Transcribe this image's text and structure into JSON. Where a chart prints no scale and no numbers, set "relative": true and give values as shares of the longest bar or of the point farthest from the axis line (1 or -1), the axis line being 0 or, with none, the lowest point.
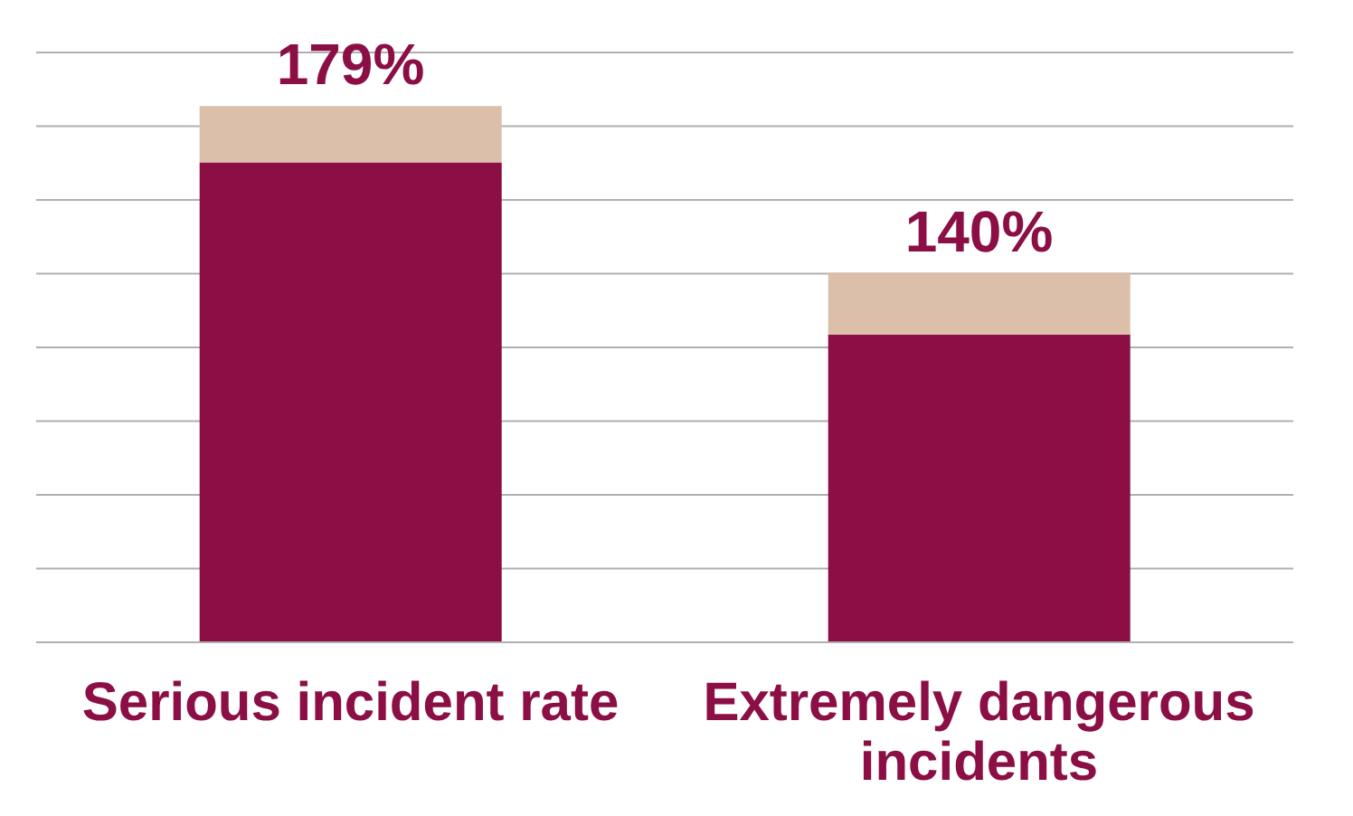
{
  "chart_data": {
    "type": "bar",
    "relative": true,
    "stacked": true,
    "grid": "y",
    "categories": [
      "Serious incident rate",
      "Extremely dangerous incidents"
    ],
    "series": [
      {
        "color": "#8b0e45",
        "values": [
          0.895,
          0.574
        ]
      },
      {
        "color": "#dbbfaa",
        "values": [
          0.105,
          0.115
        ]
      }
    ],
    "annotations": [
      {
        "text": "179%",
        "x": "Serious incident rate",
        "y": 1
      },
      {
        "text": "140%",
        "x": "Extremely dangerous incidents",
        "y": 0.689
      }
    ]
  }
}
